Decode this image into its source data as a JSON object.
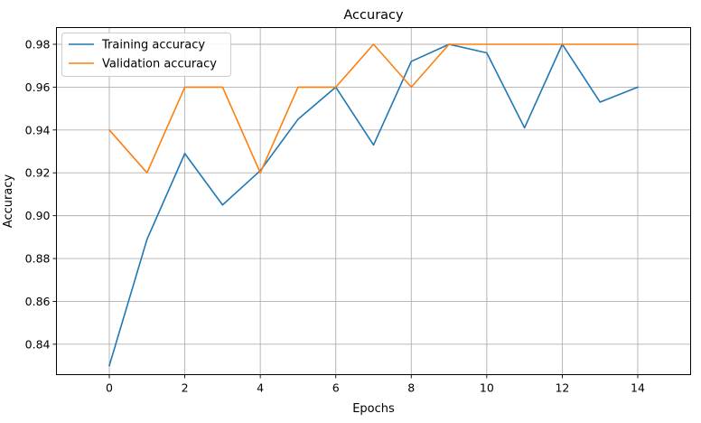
{
  "chart_data": {
    "type": "line",
    "title": "Accuracy",
    "xlabel": "Epochs",
    "ylabel": "Accuracy",
    "xlim": [
      -1.4,
      15.4
    ],
    "ylim": [
      0.8258,
      0.9878
    ],
    "xticks": [
      0,
      2,
      4,
      6,
      8,
      10,
      12,
      14
    ],
    "yticks": [
      0.84,
      0.86,
      0.88,
      0.9,
      0.92,
      0.94,
      0.96,
      0.98
    ],
    "xtick_labels": [
      "0",
      "2",
      "4",
      "6",
      "8",
      "10",
      "12",
      "14"
    ],
    "ytick_labels": [
      "0.84",
      "0.86",
      "0.88",
      "0.90",
      "0.92",
      "0.94",
      "0.96",
      "0.98"
    ],
    "grid": true,
    "legend_position": "upper-left",
    "x": [
      0,
      1,
      2,
      3,
      4,
      5,
      6,
      7,
      8,
      9,
      10,
      11,
      12,
      13,
      14
    ],
    "series": [
      {
        "name": "Training accuracy",
        "color": "#1f77b4",
        "values": [
          0.83,
          0.889,
          0.929,
          0.905,
          0.921,
          0.945,
          0.96,
          0.933,
          0.972,
          0.98,
          0.976,
          0.941,
          0.98,
          0.953,
          0.96
        ]
      },
      {
        "name": "Validation accuracy",
        "color": "#ff7f0e",
        "values": [
          0.94,
          0.92,
          0.96,
          0.96,
          0.92,
          0.96,
          0.96,
          0.98,
          0.96,
          0.98,
          0.98,
          0.98,
          0.98,
          0.98,
          0.98
        ]
      }
    ]
  }
}
